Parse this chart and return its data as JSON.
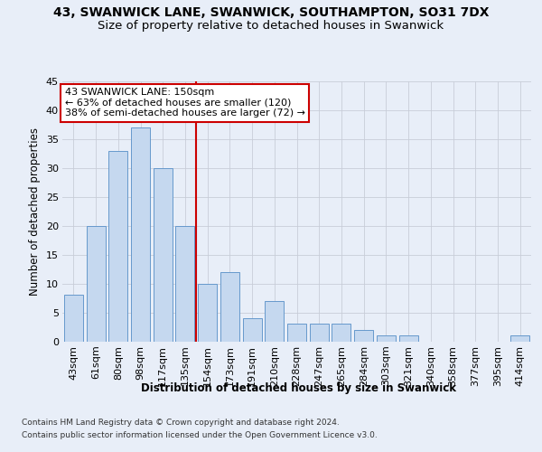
{
  "title1": "43, SWANWICK LANE, SWANWICK, SOUTHAMPTON, SO31 7DX",
  "title2": "Size of property relative to detached houses in Swanwick",
  "xlabel": "Distribution of detached houses by size in Swanwick",
  "ylabel": "Number of detached properties",
  "categories": [
    "43sqm",
    "61sqm",
    "80sqm",
    "98sqm",
    "117sqm",
    "135sqm",
    "154sqm",
    "173sqm",
    "191sqm",
    "210sqm",
    "228sqm",
    "247sqm",
    "265sqm",
    "284sqm",
    "303sqm",
    "321sqm",
    "340sqm",
    "358sqm",
    "377sqm",
    "395sqm",
    "414sqm"
  ],
  "values": [
    8,
    20,
    33,
    37,
    30,
    20,
    10,
    12,
    4,
    7,
    3,
    3,
    3,
    2,
    1,
    1,
    0,
    0,
    0,
    0,
    1
  ],
  "bar_color": "#c5d8ef",
  "bar_edge_color": "#6699cc",
  "vline_index": 6,
  "vline_color": "#cc0000",
  "annotation_text": "43 SWANWICK LANE: 150sqm\n← 63% of detached houses are smaller (120)\n38% of semi-detached houses are larger (72) →",
  "annotation_box_facecolor": "#ffffff",
  "annotation_box_edgecolor": "#cc0000",
  "ylim": [
    0,
    45
  ],
  "yticks": [
    0,
    5,
    10,
    15,
    20,
    25,
    30,
    35,
    40,
    45
  ],
  "bg_color": "#e8eef8",
  "grid_color": "#c8cdd8",
  "footer1": "Contains HM Land Registry data © Crown copyright and database right 2024.",
  "footer2": "Contains public sector information licensed under the Open Government Licence v3.0.",
  "title1_fontsize": 10,
  "title2_fontsize": 9.5,
  "axis_label_fontsize": 8.5,
  "ylabel_fontsize": 8.5,
  "tick_fontsize": 8,
  "annotation_fontsize": 8,
  "footer_fontsize": 6.5
}
